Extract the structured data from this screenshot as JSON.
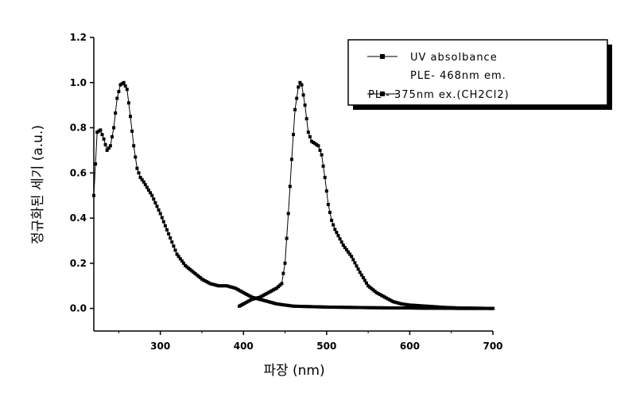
{
  "chart_data": {
    "type": "scatter",
    "xlabel": "파장 (nm)",
    "ylabel": "정규화된 세기 (a.u.)",
    "xlim": [
      220,
      700
    ],
    "ylim": [
      -0.1,
      1.2
    ],
    "x_ticks": [
      "300",
      "400",
      "500",
      "600",
      "700"
    ],
    "y_ticks": [
      "0.0",
      "0.2",
      "0.4",
      "0.6",
      "0.8",
      "1.0",
      "1.2"
    ],
    "legend_position": "top-right",
    "legend": [
      "UV absolbance",
      "PLE- 468nm em.",
      "PL - 375nm ex.(CH2Cl2)"
    ],
    "series": [
      {
        "name": "UV absolbance",
        "color": "#000000",
        "x": [
          220,
          224,
          228,
          232,
          236,
          240,
          244,
          248,
          252,
          256,
          260,
          264,
          268,
          272,
          276,
          280,
          290,
          300,
          310,
          320,
          330,
          340,
          350,
          360,
          370,
          380,
          390,
          400,
          410,
          420,
          430,
          440,
          450,
          460,
          480,
          500,
          520,
          540,
          560,
          580,
          600,
          620,
          640,
          660,
          680,
          700
        ],
        "y": [
          0.5,
          0.78,
          0.79,
          0.75,
          0.7,
          0.72,
          0.8,
          0.93,
          0.99,
          1.0,
          0.97,
          0.85,
          0.72,
          0.62,
          0.58,
          0.56,
          0.5,
          0.42,
          0.33,
          0.24,
          0.19,
          0.16,
          0.13,
          0.11,
          0.1,
          0.1,
          0.09,
          0.07,
          0.05,
          0.04,
          0.03,
          0.02,
          0.015,
          0.01,
          0.008,
          0.006,
          0.005,
          0.004,
          0.003,
          0.002,
          0.002,
          0.001,
          0.001,
          0.0,
          0.0,
          0.0
        ]
      },
      {
        "name": "PL - 375nm ex.(CH2Cl2)",
        "color": "#000000",
        "x": [
          395,
          400,
          410,
          420,
          430,
          440,
          446,
          450,
          454,
          458,
          462,
          466,
          468,
          470,
          474,
          478,
          482,
          486,
          490,
          494,
          498,
          502,
          506,
          510,
          520,
          530,
          540,
          550,
          560,
          570,
          580,
          590,
          600,
          620,
          640,
          660,
          680,
          700
        ],
        "y": [
          0.01,
          0.02,
          0.04,
          0.05,
          0.07,
          0.09,
          0.11,
          0.2,
          0.42,
          0.66,
          0.88,
          0.98,
          1.0,
          0.99,
          0.9,
          0.78,
          0.74,
          0.73,
          0.72,
          0.68,
          0.58,
          0.46,
          0.39,
          0.35,
          0.28,
          0.23,
          0.16,
          0.1,
          0.07,
          0.05,
          0.03,
          0.02,
          0.015,
          0.01,
          0.005,
          0.002,
          0.001,
          0.0
        ]
      }
    ]
  }
}
